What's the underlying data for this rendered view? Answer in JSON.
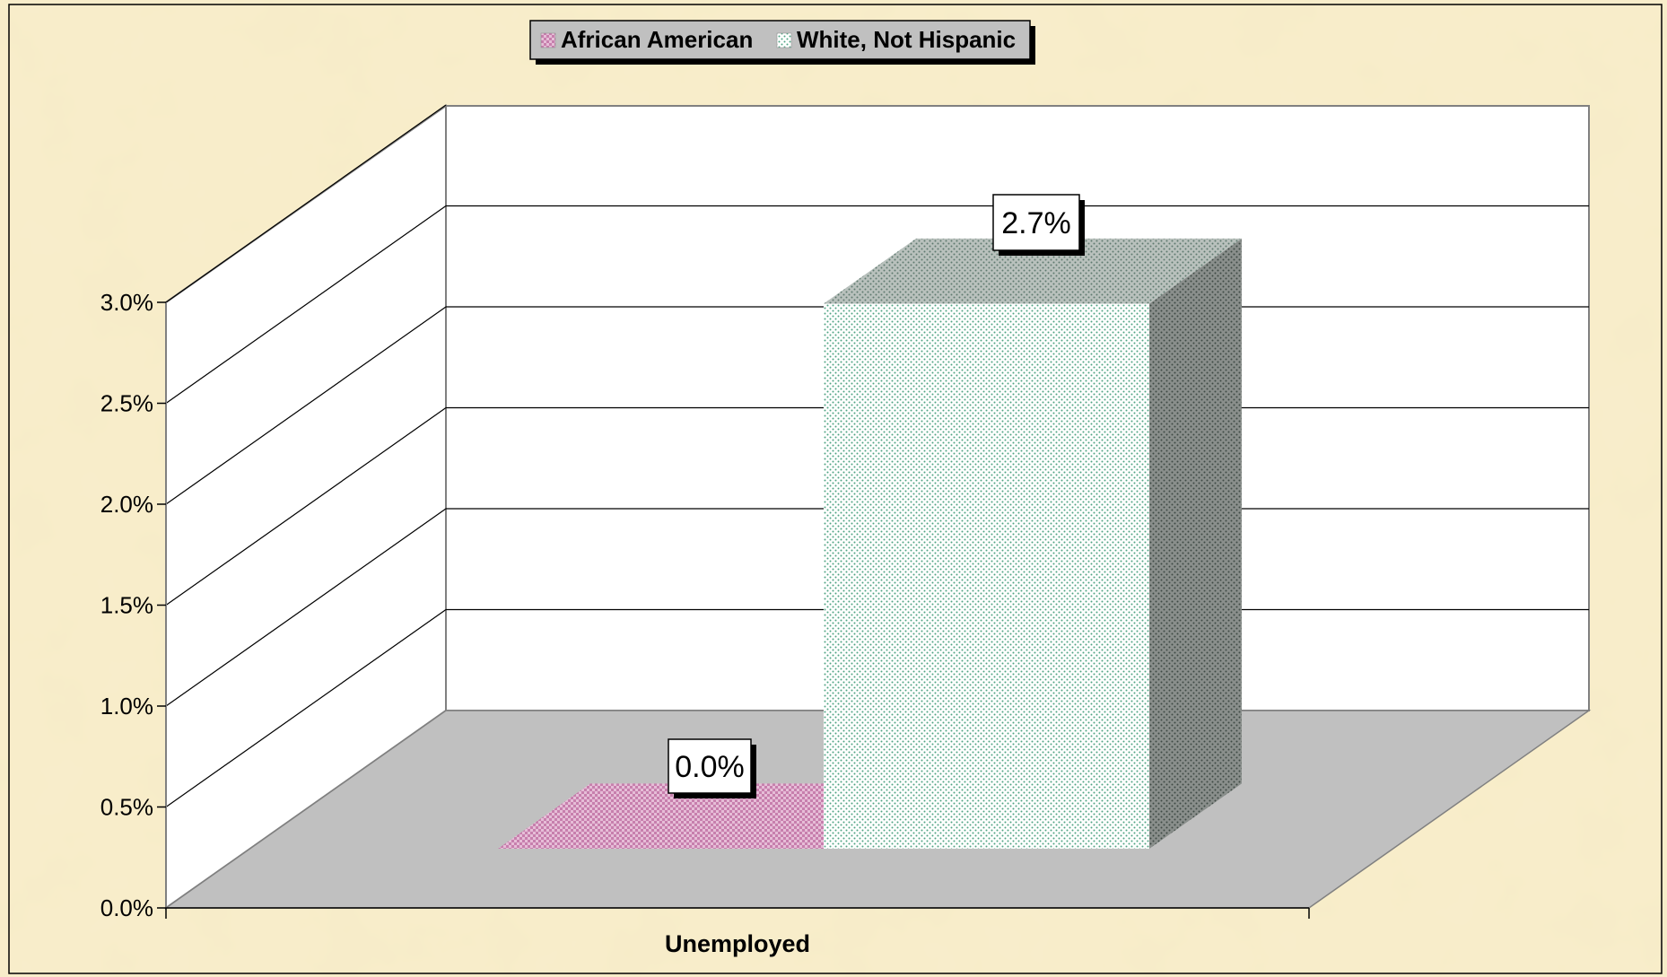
{
  "chart_data": {
    "type": "bar",
    "style": "3d-clustered-column",
    "categories": [
      "Unemployed"
    ],
    "series": [
      {
        "name": "African American",
        "values": [
          0.0
        ],
        "color": "#d9a6c8",
        "pattern": "checker"
      },
      {
        "name": "White, Not Hispanic",
        "values": [
          2.7
        ],
        "color": "#5fae8c",
        "pattern": "dots"
      }
    ],
    "data_labels": [
      "0.0%",
      "2.7%"
    ],
    "y_ticks": [
      "0.0%",
      "0.5%",
      "1.0%",
      "1.5%",
      "2.0%",
      "2.5%",
      "3.0%"
    ],
    "ylim": [
      0,
      3.0
    ],
    "grid": true,
    "legend_position": "top-center",
    "background_color": "#f7ecc8",
    "floor_color": "#c0c0c0",
    "wall_color": "#ffffff",
    "title": "",
    "xlabel": "",
    "ylabel": ""
  }
}
